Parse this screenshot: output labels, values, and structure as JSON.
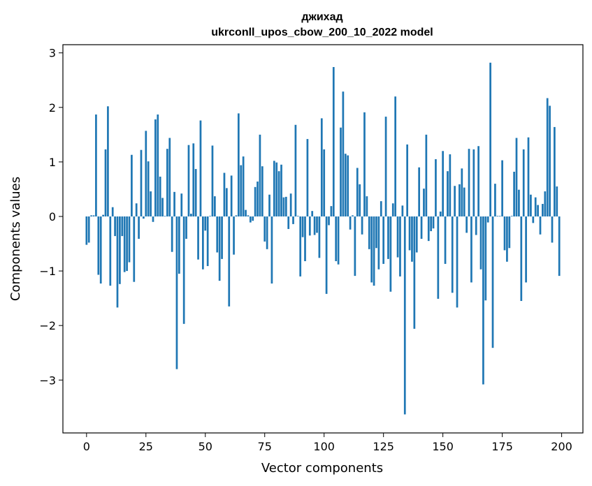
{
  "chart_data": {
    "type": "bar",
    "title": "джихад",
    "subtitle": "ukrconll_upos_cbow_200_10_2022 model",
    "xlabel": "Vector components",
    "ylabel": "Components values",
    "xlim": [
      -9.95,
      208.95
    ],
    "ylim": [
      -3.97,
      3.15
    ],
    "xticks": [
      0,
      25,
      50,
      75,
      100,
      125,
      150,
      175,
      200
    ],
    "yticks": [
      -3,
      -2,
      -1,
      0,
      1,
      2,
      3
    ],
    "xtick_labels": [
      "0",
      "25",
      "50",
      "75",
      "100",
      "125",
      "150",
      "175",
      "200"
    ],
    "ytick_labels": [
      "−3",
      "−2",
      "−1",
      "0",
      "1",
      "2",
      "3"
    ],
    "grid": false,
    "bar_color": "#1f77b4",
    "values": [
      -0.52,
      -0.48,
      0.02,
      0.02,
      1.87,
      -1.07,
      -1.23,
      0.03,
      1.23,
      2.02,
      -1.27,
      0.17,
      -0.36,
      -1.67,
      -1.24,
      -0.36,
      -1.02,
      -1.0,
      -0.84,
      1.13,
      -1.2,
      0.24,
      -0.41,
      1.22,
      -0.04,
      1.57,
      1.01,
      0.46,
      -0.1,
      1.78,
      1.87,
      0.73,
      0.34,
      0.01,
      1.24,
      1.44,
      -0.65,
      0.45,
      -2.8,
      -1.05,
      0.42,
      -1.97,
      -0.41,
      1.31,
      0.05,
      1.34,
      0.87,
      -0.79,
      1.76,
      -0.97,
      -0.26,
      -0.91,
      0.01,
      1.3,
      0.37,
      -0.66,
      -1.18,
      -0.78,
      0.8,
      0.52,
      -1.65,
      0.75,
      -0.7,
      0.02,
      1.89,
      0.94,
      1.1,
      0.12,
      0.02,
      -0.11,
      -0.08,
      0.54,
      0.64,
      1.5,
      0.92,
      -0.46,
      -0.6,
      0.4,
      -1.23,
      1.02,
      0.99,
      0.83,
      0.95,
      0.35,
      0.36,
      -0.23,
      0.42,
      -0.14,
      1.68,
      0.01,
      -1.1,
      -0.38,
      -0.82,
      1.42,
      -0.35,
      0.1,
      -0.34,
      -0.3,
      -0.76,
      1.8,
      1.23,
      -1.42,
      -0.16,
      0.19,
      2.74,
      -0.82,
      -0.88,
      1.63,
      2.29,
      1.15,
      1.12,
      -0.24,
      0.02,
      -1.09,
      0.89,
      0.59,
      -0.33,
      1.91,
      0.37,
      -0.6,
      -1.21,
      -1.27,
      -0.58,
      -0.97,
      0.28,
      -0.87,
      1.83,
      -0.78,
      -1.38,
      0.24,
      2.2,
      -0.75,
      -1.1,
      0.2,
      -3.63,
      1.32,
      -0.62,
      -0.83,
      -2.06,
      -0.66,
      0.9,
      -0.41,
      0.51,
      1.5,
      -0.45,
      -0.27,
      -0.22,
      1.05,
      -1.51,
      0.09,
      1.2,
      -0.87,
      0.83,
      1.14,
      -1.4,
      0.56,
      -1.67,
      0.59,
      0.88,
      0.53,
      -0.3,
      1.24,
      -1.21,
      1.23,
      -0.34,
      1.29,
      -0.97,
      -3.08,
      -1.54,
      -0.11,
      2.82,
      -2.41,
      0.6,
      0.01,
      0.01,
      1.03,
      -0.62,
      -0.83,
      -0.58,
      0.01,
      0.82,
      1.44,
      0.49,
      -1.55,
      1.23,
      -1.21,
      1.45,
      0.4,
      -0.12,
      0.35,
      0.21,
      -0.33,
      0.23,
      0.46,
      2.17,
      2.03,
      -0.48,
      1.64,
      0.55,
      -1.09
    ]
  }
}
